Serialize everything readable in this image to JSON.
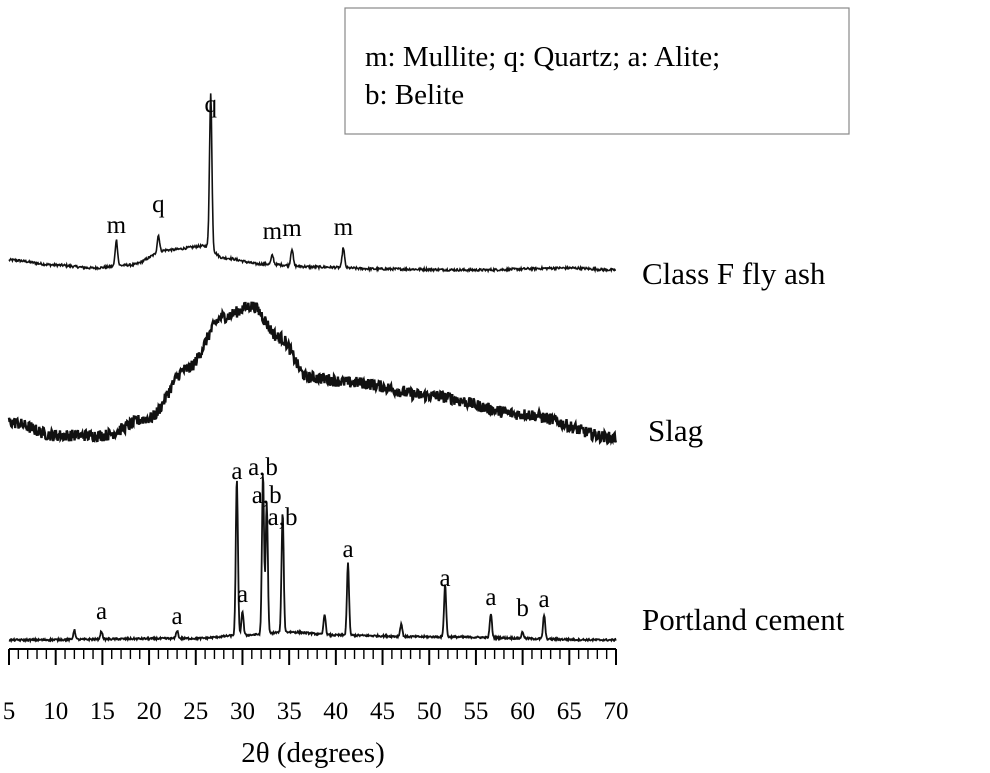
{
  "chart_data": {
    "type": "line",
    "title": "",
    "xlabel": "2θ (degrees)",
    "ylabel": "",
    "xlim": [
      5,
      70
    ],
    "x_ticks": [
      "5",
      "10",
      "15",
      "20",
      "25",
      "30",
      "35",
      "40",
      "45",
      "50",
      "55",
      "60",
      "65",
      "70"
    ],
    "grid": false,
    "legend": {
      "placement": "top-right",
      "lines": [
        "m: Mullite; q: Quartz; a: Alite;",
        "b: Belite"
      ]
    },
    "series": [
      {
        "name": "Class F fly ash",
        "baseline": [
          [
            5,
            0.1
          ],
          [
            10,
            0.05
          ],
          [
            14,
            0.02
          ],
          [
            18,
            0.05
          ],
          [
            22,
            0.2
          ],
          [
            26,
            0.24
          ],
          [
            28,
            0.12
          ],
          [
            32,
            0.06
          ],
          [
            38,
            0.03
          ],
          [
            45,
            0.01
          ],
          [
            55,
            0.0
          ],
          [
            65,
            0.02
          ],
          [
            70,
            0.0
          ]
        ],
        "noise": 0.012,
        "peaks": [
          {
            "x": 16.5,
            "h": 0.26,
            "label": "m"
          },
          {
            "x": 21.0,
            "h": 0.17,
            "label": "q"
          },
          {
            "x": 26.6,
            "h": 1.55,
            "label": "q"
          },
          {
            "x": 33.2,
            "h": 0.09,
            "label": "m"
          },
          {
            "x": 35.3,
            "h": 0.17,
            "label": "m"
          },
          {
            "x": 40.8,
            "h": 0.2,
            "label": "m"
          }
        ]
      },
      {
        "name": "Slag",
        "baseline": [
          [
            5,
            0.12
          ],
          [
            10,
            0.02
          ],
          [
            15,
            0.02
          ],
          [
            20,
            0.15
          ],
          [
            24,
            0.52
          ],
          [
            28,
            0.92
          ],
          [
            31,
            1.0
          ],
          [
            34,
            0.76
          ],
          [
            37,
            0.46
          ],
          [
            42,
            0.42
          ],
          [
            50,
            0.32
          ],
          [
            60,
            0.18
          ],
          [
            70,
            0.0
          ]
        ],
        "noise": 0.045,
        "peaks": []
      },
      {
        "name": "Portland cement",
        "baseline": [
          [
            5,
            0.0
          ],
          [
            25,
            0.01
          ],
          [
            30,
            0.03
          ],
          [
            35,
            0.05
          ],
          [
            40,
            0.03
          ],
          [
            50,
            0.02
          ],
          [
            70,
            0.0
          ]
        ],
        "noise": 0.006,
        "peaks": [
          {
            "x": 12.0,
            "h": 0.06
          },
          {
            "x": 14.9,
            "h": 0.05,
            "label": "a"
          },
          {
            "x": 23.0,
            "h": 0.05,
            "label": "a"
          },
          {
            "x": 29.4,
            "h": 0.98,
            "label": "a"
          },
          {
            "x": 30.0,
            "h": 0.15,
            "label": "a"
          },
          {
            "x": 32.2,
            "h": 1.0,
            "label": "a,b"
          },
          {
            "x": 32.6,
            "h": 0.82,
            "label": "a,b"
          },
          {
            "x": 34.3,
            "h": 0.75,
            "label": "a,b"
          },
          {
            "x": 38.8,
            "h": 0.13
          },
          {
            "x": 41.3,
            "h": 0.45,
            "label": "a"
          },
          {
            "x": 47.0,
            "h": 0.08
          },
          {
            "x": 51.7,
            "h": 0.33,
            "label": "a"
          },
          {
            "x": 56.6,
            "h": 0.15,
            "label": "a"
          },
          {
            "x": 60.0,
            "h": 0.04,
            "label": "b"
          },
          {
            "x": 62.3,
            "h": 0.15,
            "label": "a"
          }
        ]
      }
    ]
  }
}
